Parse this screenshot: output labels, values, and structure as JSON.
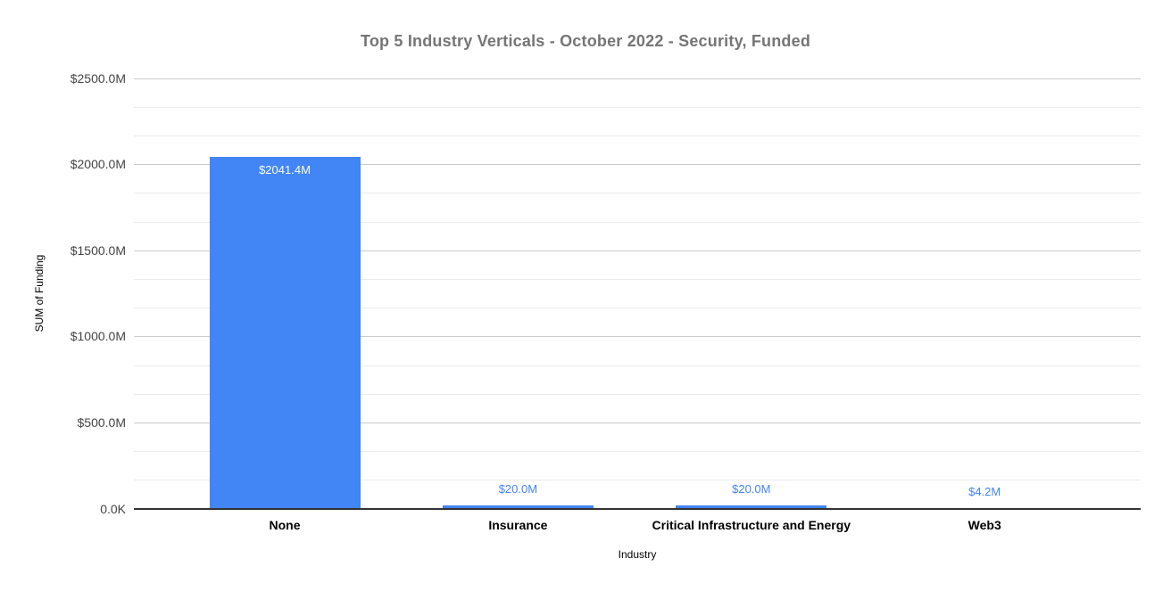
{
  "chart_data": {
    "type": "bar",
    "title": "Top 5 Industry Verticals - October 2022 - Security, Funded",
    "xlabel": "Industry",
    "ylabel": "SUM of Funding",
    "categories": [
      "None",
      "Insurance",
      "Critical Infrastructure and Energy",
      "Web3"
    ],
    "values": [
      2041.4,
      20.0,
      20.0,
      4.2
    ],
    "value_labels": [
      "$2041.4M",
      "$20.0M",
      "$20.0M",
      "$4.2M"
    ],
    "y_ticks_top_to_bottom": [
      "$2500.0M",
      "$2000.0M",
      "$1500.0M",
      "$1000.0M",
      "$500.0M",
      "0.0K"
    ],
    "ylim": [
      0,
      2500
    ],
    "legend": "none",
    "grid": "horizontal major gridlines every 500M with 2 minor gridlines per interval",
    "colors": {
      "bar": "#4285f4",
      "data_label_inside": "#ffffff",
      "data_label_outside": "#4285f4",
      "title": "#757575",
      "axis_title": "#000000",
      "y_tick_label": "#444444",
      "category_label": "#000000",
      "gridline_major": "#cccccc",
      "gridline_minor": "#ebebeb",
      "baseline": "#333333",
      "background": "#ffffff"
    }
  }
}
